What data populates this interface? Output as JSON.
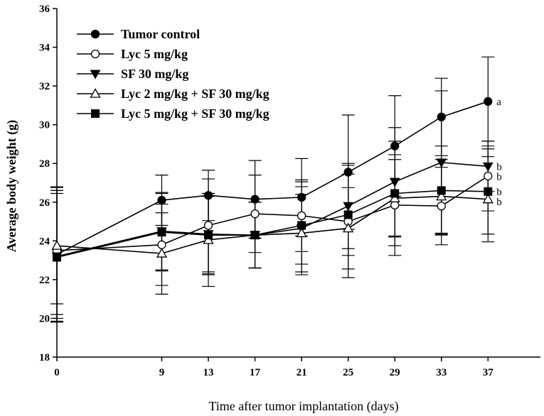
{
  "chart_data": {
    "type": "line",
    "title": "",
    "xlabel": "Time after tumor implantation (days)",
    "ylabel": "Average body weight (g)",
    "ylim": [
      18,
      36
    ],
    "yticks": [
      18,
      20,
      22,
      24,
      26,
      28,
      30,
      32,
      34,
      36
    ],
    "xlim": [
      0,
      41.5
    ],
    "xticks": [
      0,
      9,
      13,
      17,
      21,
      25,
      29,
      33,
      37
    ],
    "legend_position": "top-left",
    "colors": {
      "line": "#000000",
      "fill_filled": "#000000",
      "fill_open": "#ffffff"
    },
    "series": [
      {
        "name": "Tumor control",
        "marker": "circle-filled",
        "x": [
          0,
          9,
          13,
          17,
          21,
          25,
          29,
          33,
          37
        ],
        "values": [
          23.3,
          26.1,
          26.35,
          26.15,
          26.25,
          27.55,
          28.9,
          30.4,
          31.2
        ],
        "errors": [
          3.3,
          1.3,
          1.3,
          2.0,
          2.0,
          2.95,
          2.6,
          2.0,
          2.3
        ],
        "sig_label": "a"
      },
      {
        "name": "Lyc 5 mg/kg",
        "marker": "circle-open",
        "x": [
          0,
          9,
          13,
          17,
          21,
          25,
          29,
          33,
          37
        ],
        "values": [
          23.5,
          23.8,
          24.8,
          25.4,
          25.3,
          25.0,
          25.85,
          25.8,
          27.35
        ],
        "errors": [
          3.3,
          2.1,
          2.4,
          2.0,
          1.85,
          2.9,
          2.6,
          2.0,
          1.8
        ],
        "sig_label": "b"
      },
      {
        "name": "SF 30 mg/kg",
        "marker": "triangle-down-filled",
        "x": [
          0,
          9,
          13,
          17,
          21,
          25,
          29,
          33,
          37
        ],
        "values": [
          23.2,
          24.5,
          24.35,
          24.3,
          24.65,
          25.8,
          27.05,
          28.05,
          27.85
        ],
        "errors": [
          3.4,
          2.0,
          2.1,
          1.7,
          2.4,
          2.2,
          2.8,
          3.7,
          1.3
        ],
        "sig_label": "b"
      },
      {
        "name": "Lyc 2 mg/kg + SF 30 mg/kg",
        "marker": "triangle-up-open",
        "x": [
          0,
          9,
          13,
          17,
          21,
          25,
          29,
          33,
          37
        ],
        "values": [
          23.75,
          23.35,
          24.05,
          24.3,
          24.4,
          24.65,
          26.2,
          26.3,
          26.15
        ],
        "errors": [
          3.0,
          2.1,
          2.4,
          1.7,
          2.0,
          2.1,
          2.0,
          1.9,
          2.2
        ],
        "sig_label": "b"
      },
      {
        "name": "Lyc 5 mg/kg + SF 30 mg/kg",
        "marker": "square-filled",
        "x": [
          0,
          9,
          13,
          17,
          21,
          25,
          29,
          33,
          37
        ],
        "values": [
          23.15,
          24.45,
          24.3,
          24.3,
          24.8,
          25.35,
          26.45,
          26.6,
          26.55
        ],
        "errors": [
          3.3,
          2.0,
          2.0,
          1.7,
          2.0,
          2.1,
          2.7,
          2.3,
          2.2
        ],
        "sig_label": "b"
      }
    ]
  }
}
